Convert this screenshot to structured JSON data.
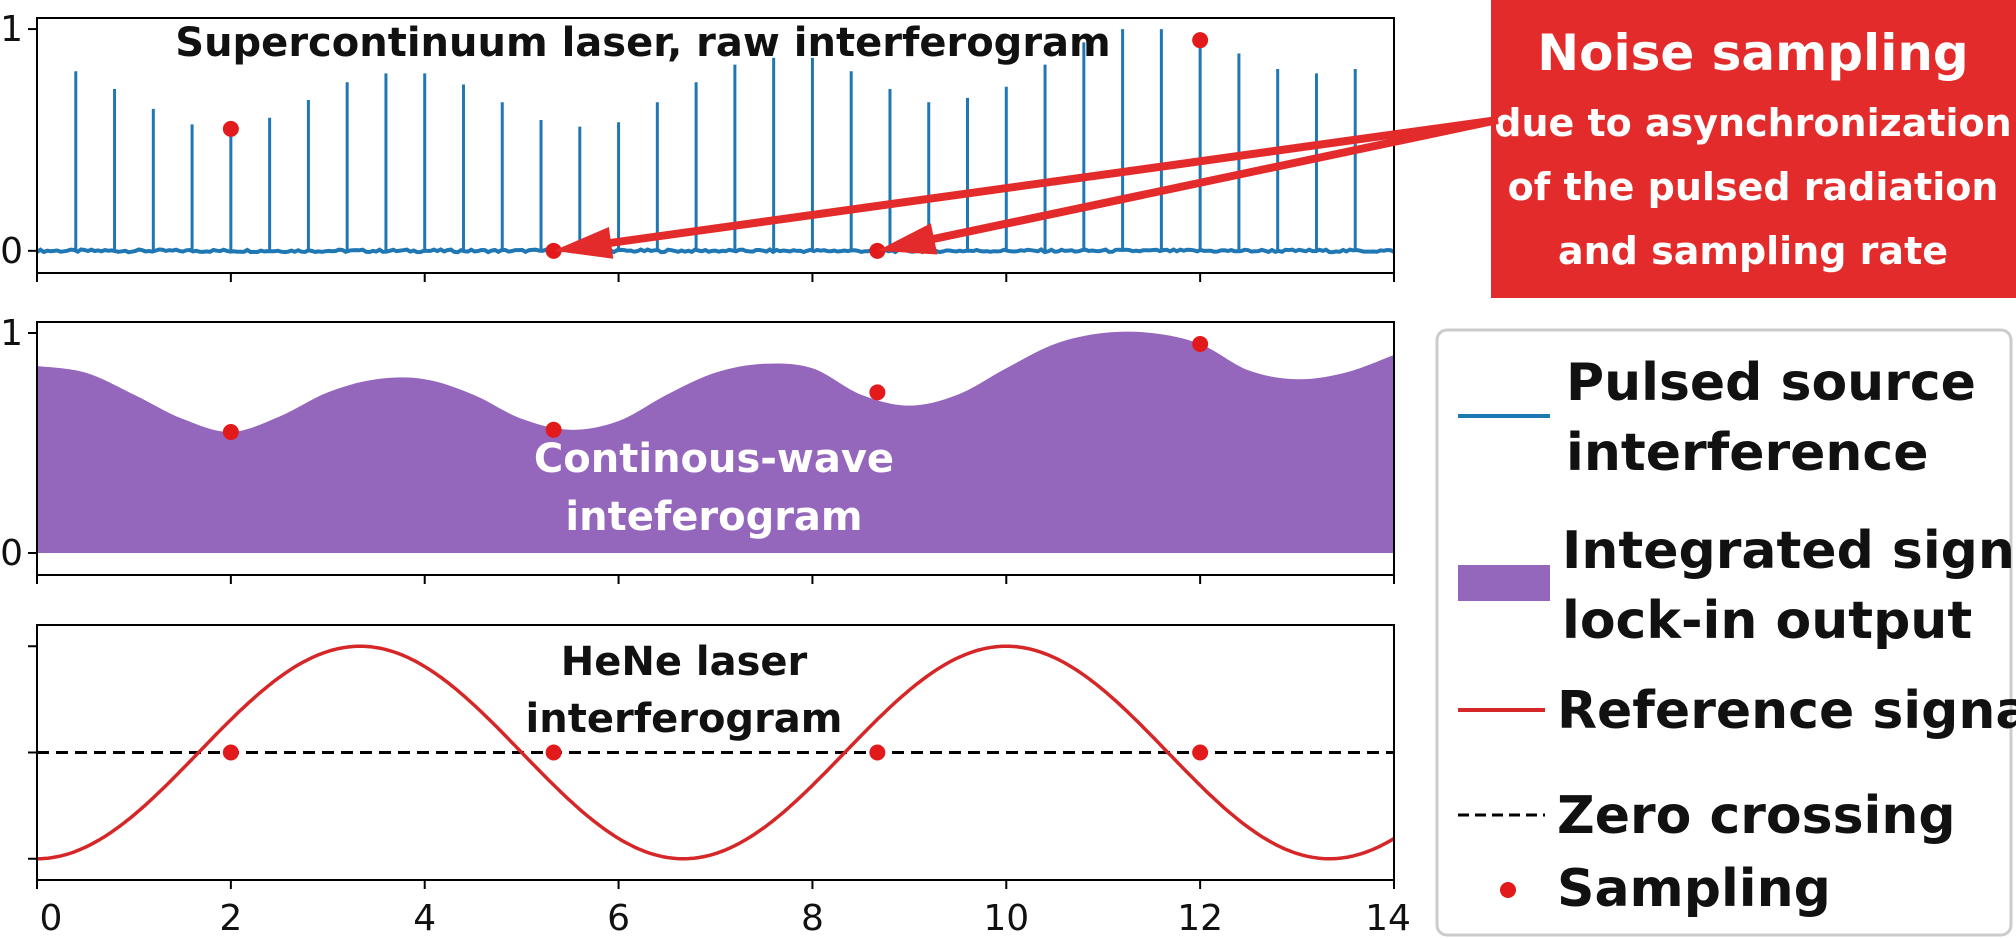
{
  "colors": {
    "pulsed": "#1f77b4",
    "integrated": "#9467bd",
    "reference": "#d62728",
    "zero": "#000000",
    "sampling": "#e31a1c",
    "note_bg": "#e32b2b"
  },
  "chart_data": [
    {
      "type": "line",
      "title": "Supercontinuum laser, raw interferogram",
      "xlim": [
        0,
        14
      ],
      "ylim": [
        -0.1,
        1.05
      ],
      "yticks": [
        "0",
        "1"
      ],
      "series": [
        {
          "name": "Pulsed source interference",
          "pulse_x": [
            0.4,
            0.8,
            1.2,
            1.6,
            2.0,
            2.4,
            2.8,
            3.2,
            3.6,
            4.0,
            4.4,
            4.8,
            5.2,
            5.6,
            6.0,
            6.4,
            6.8,
            7.2,
            7.6,
            8.0,
            8.4,
            8.8,
            9.2,
            9.6,
            10.0,
            10.4,
            10.8,
            11.2,
            11.6,
            12.0,
            12.4,
            12.8,
            13.2,
            13.6
          ],
          "pulse_y": [
            0.81,
            0.73,
            0.64,
            0.57,
            0.56,
            0.6,
            0.68,
            0.76,
            0.8,
            0.8,
            0.75,
            0.67,
            0.59,
            0.56,
            0.58,
            0.67,
            0.76,
            0.84,
            0.87,
            0.87,
            0.81,
            0.73,
            0.67,
            0.69,
            0.74,
            0.84,
            0.94,
            1.0,
            1.0,
            0.95,
            0.89,
            0.82,
            0.8,
            0.82
          ]
        }
      ],
      "sampling_points": {
        "x": [
          2.0,
          5.33,
          8.67,
          12.0
        ],
        "y": [
          0.55,
          0.0,
          0.0,
          0.95
        ]
      }
    },
    {
      "type": "area",
      "xlim": [
        0,
        14
      ],
      "ylim": [
        -0.1,
        1.05
      ],
      "yticks": [
        "0",
        "1"
      ],
      "series": [
        {
          "name": "Integrated signal lock-in output",
          "x": [
            0,
            0.5,
            1.0,
            1.5,
            2.0,
            2.5,
            3.0,
            3.5,
            4.0,
            4.5,
            5.0,
            5.5,
            6.0,
            6.5,
            7.0,
            7.5,
            8.0,
            8.5,
            9.0,
            9.5,
            10.0,
            10.5,
            11.0,
            11.5,
            12.0,
            12.5,
            13.0,
            13.5,
            14.0
          ],
          "y": [
            0.85,
            0.82,
            0.72,
            0.61,
            0.55,
            0.62,
            0.73,
            0.79,
            0.79,
            0.72,
            0.61,
            0.56,
            0.6,
            0.72,
            0.82,
            0.86,
            0.84,
            0.72,
            0.67,
            0.72,
            0.84,
            0.95,
            1.0,
            1.0,
            0.95,
            0.83,
            0.79,
            0.82,
            0.9
          ]
        }
      ],
      "sampling_points": {
        "x": [
          2.0,
          5.33,
          8.67,
          12.0
        ],
        "y": [
          0.55,
          0.56,
          0.73,
          0.95
        ]
      }
    },
    {
      "type": "line",
      "xlim": [
        0,
        14
      ],
      "ylim": [
        -1.2,
        1.2
      ],
      "xticks": [
        "0",
        "2",
        "4",
        "6",
        "8",
        "10",
        "12",
        "14"
      ],
      "series": [
        {
          "name": "Reference signal",
          "function": "-cos(2*pi*x/6.667)"
        },
        {
          "name": "Zero crossing",
          "y": 0
        }
      ],
      "sampling_points": {
        "x": [
          2.0,
          5.33,
          8.67,
          12.0
        ],
        "y": [
          0,
          0,
          0,
          0
        ]
      }
    }
  ],
  "annotations": {
    "supercontinuum_title": "Supercontinuum laser, raw interferogram",
    "cw_line1": "Continous-wave",
    "cw_line2": "inteferogram",
    "hene_line1": "HeNe laser",
    "hene_line2": "interferogram"
  },
  "note": {
    "title": "Noise sampling",
    "line1": "due to asynchronization",
    "line2": "of the pulsed radiation",
    "line3": "and sampling rate"
  },
  "legend": {
    "pulsed_line1": "Pulsed source",
    "pulsed_line2": "interference",
    "integrated_line1": "Integrated signal",
    "integrated_line2": "lock-in output",
    "reference": "Reference signal",
    "zero": "Zero crossing",
    "sampling": "Sampling"
  }
}
